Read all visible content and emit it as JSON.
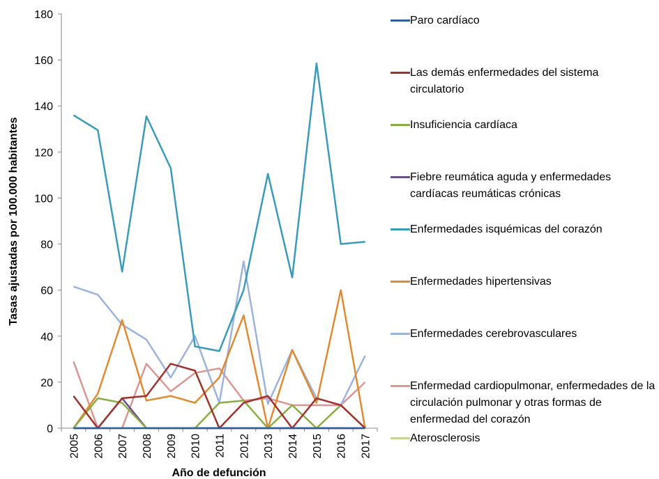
{
  "chart_data": {
    "type": "line",
    "y_label": "Tasas ajustadas por 100.000 habitantes",
    "x_label": "Año de defunción",
    "categories": [
      "2005",
      "2006",
      "2007",
      "2008",
      "2009",
      "2010",
      "2011",
      "2012",
      "2013",
      "2014",
      "2015",
      "2016",
      "2017"
    ],
    "ylim": [
      0,
      180
    ],
    "yticks": [
      0,
      20,
      40,
      60,
      80,
      100,
      120,
      140,
      160,
      180
    ],
    "grid": false,
    "legend": "right",
    "series": [
      {
        "name": "Paro cardíaco",
        "color": "#2e5f9a",
        "values": [
          0,
          0,
          0,
          0,
          0,
          0,
          0,
          0,
          0,
          0,
          0,
          0,
          0
        ]
      },
      {
        "name": "Las demás enfermedades del sistema circulatorio",
        "color": "#a0322d",
        "values": [
          14,
          0,
          13,
          14,
          28,
          25,
          0,
          11,
          14,
          0,
          13,
          10,
          0
        ]
      },
      {
        "name": "Insuficiencia cardíaca",
        "color": "#8aac45",
        "values": [
          0,
          13,
          11,
          0,
          0,
          0,
          11,
          12,
          0,
          10,
          0,
          10,
          0
        ]
      },
      {
        "name": "Fiebre reumática aguda y enfermedades cardíacas reumáticas crónicas",
        "color": "#6b4c94",
        "values": [
          0,
          0,
          13,
          0,
          0,
          0,
          0,
          0,
          0,
          0,
          0,
          0,
          0
        ]
      },
      {
        "name": "Enfermedades isquémicas del corazón",
        "color": "#3a9bb8",
        "values": [
          136,
          129.5,
          68,
          135.5,
          113,
          35.5,
          33.5,
          60,
          110.5,
          65.5,
          158.5,
          80,
          81
        ]
      },
      {
        "name": "Enfermedades hipertensivas",
        "color": "#e08a32",
        "values": [
          0,
          15,
          47,
          12,
          14,
          11,
          22,
          49,
          0,
          34,
          11,
          60,
          0
        ]
      },
      {
        "name": "Enfermedades cerebrovasculares",
        "color": "#9db3dc",
        "values": [
          61.5,
          58,
          45,
          38.5,
          22,
          40,
          11,
          72.5,
          10.5,
          34,
          13,
          10,
          31.5
        ]
      },
      {
        "name": "Enfermedad cardiopulmonar, enfermedades de la circulación pulmonar y otras formas de enfermedad del corazón",
        "color": "#d99694",
        "values": [
          29,
          0,
          0,
          28,
          16,
          24,
          26,
          12,
          13,
          10,
          10,
          10,
          20
        ]
      },
      {
        "name": "Aterosclerosis",
        "color": "#c3d69b",
        "values": [
          0,
          0,
          0,
          0,
          0,
          0,
          0,
          0,
          0,
          0,
          0,
          0,
          0
        ]
      }
    ]
  }
}
